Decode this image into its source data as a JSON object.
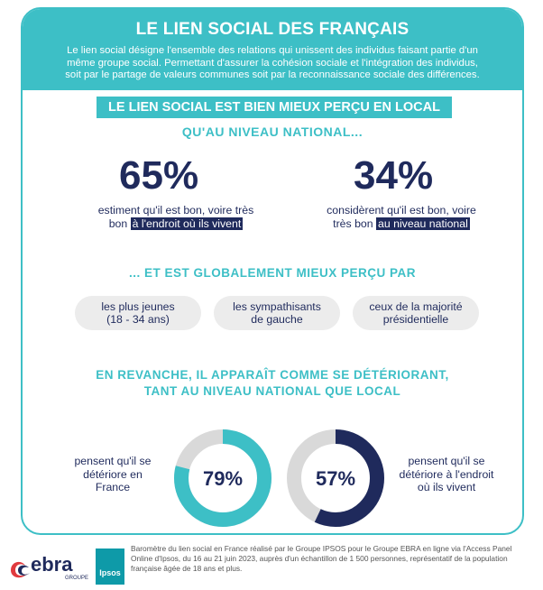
{
  "header": {
    "title": "LE LIEN SOCIAL DES FRANÇAIS",
    "intro_line1": "Le lien social désigne l'ensemble des relations qui unissent des individus faisant partie d'un",
    "intro_line2": "même groupe social. Permettant d'assurer la cohésion sociale et l'intégration des individus,",
    "intro_line3": "soit par le partage de valeurs communes soit par la reconnaissance sociale des différences."
  },
  "section1": {
    "title_box": "LE LIEN SOCIAL EST BIEN MIEUX PERÇU EN LOCAL",
    "title_line2": "QU'AU NIVEAU NATIONAL...",
    "left": {
      "value": "65%",
      "line1": "estiment qu'il est bon, voire très",
      "line2_plain": "bon",
      "line2_highlight": "à l'endroit où ils vivent"
    },
    "right": {
      "value": "34%",
      "line1": "considèrent qu'il est bon, voire",
      "line2_plain": "très bon",
      "line2_highlight": "au niveau national"
    }
  },
  "section2": {
    "title": "... ET EST GLOBALEMENT MIEUX PERÇU PAR",
    "pills": [
      {
        "line1": "les plus jeunes",
        "line2": "(18 - 34 ans)"
      },
      {
        "line1": "les sympathisants",
        "line2": "de gauche"
      },
      {
        "line1": "ceux de la majorité",
        "line2": "présidentielle"
      }
    ]
  },
  "section3": {
    "title_line1": "EN REVANCHE, IL APPARAÎT COMME SE DÉTÉRIORANT,",
    "title_line2": "TANT AU NIVEAU NATIONAL QUE LOCAL",
    "left": {
      "value": "79%",
      "fraction": 0.79,
      "color": "#3dbfc6",
      "line1": "pensent qu'il se",
      "line2": "détériore en",
      "line3": "France"
    },
    "right": {
      "value": "57%",
      "fraction": 0.57,
      "color": "#1f2a5c",
      "line1": "pensent qu'il se",
      "line2": "détériore à l'endroit",
      "line3": "où ils vivent"
    }
  },
  "footer": {
    "logo_ebra": "ebra",
    "logo_ebra_sub": "GROUPE",
    "logo_ipsos": "Ipsos",
    "line1": "Baromètre du lien social en France réalisé par le Groupe IPSOS pour le Groupe EBRA en ligne via l'Access Panel",
    "line2": "Online d'Ipsos, du 16 au 21 juin 2023, auprès d'un échantillon de 1 500 personnes, représentatif de la population",
    "line3": "française âgée de 18 ans et plus."
  },
  "colors": {
    "teal": "#3dbfc6",
    "navy": "#1f2a5c",
    "track": "#d9d9d9",
    "pill": "#ececec"
  }
}
